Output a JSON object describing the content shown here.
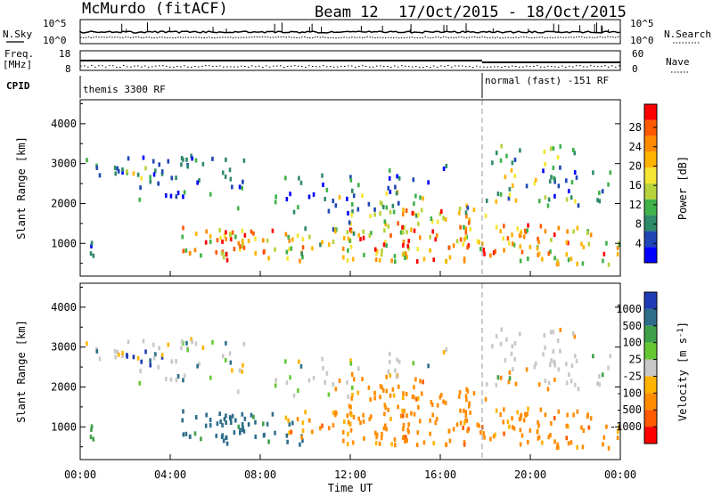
{
  "header": {
    "station": "McMurdo (fitACF)",
    "beam": "Beam 12",
    "dates": "17/Oct/2015 - 18/Oct/2015"
  },
  "noise_panel": {
    "left_label": "N.Sky",
    "right_label": "N.Search",
    "left_ticks": [
      "10^5",
      "10^0"
    ],
    "right_ticks": [
      "10^5",
      "10^0"
    ]
  },
  "freq_panel": {
    "left_label_line1": "Freq.",
    "left_label_line2": "[MHz]",
    "right_label": "Nave",
    "left_ticks": [
      "18",
      "8"
    ],
    "right_ticks": [
      "60",
      "0"
    ]
  },
  "cpid_panel": {
    "label": "CPID",
    "modes": [
      "themis 3300 RF",
      "normal (fast) -151 RF"
    ]
  },
  "chart_data": [
    {
      "type": "heatmap",
      "name": "power",
      "ylabel": "Slant Range [km]",
      "ylim": [
        180,
        4600
      ],
      "yticks": [
        1000,
        2000,
        3000,
        4000
      ],
      "xlim": [
        0,
        24
      ],
      "colorbar_label": "Power [dB]",
      "colorbar_ticks": [
        "4",
        "8",
        "12",
        "16",
        "20",
        "24",
        "28"
      ],
      "colorbar_colors": [
        "#0000ff",
        "#1e46b4",
        "#2f8a6a",
        "#3fb24a",
        "#b8d23c",
        "#f4e632",
        "#ffb400",
        "#ff8c00",
        "#ff5a00",
        "#ff0000"
      ]
    },
    {
      "type": "heatmap",
      "name": "velocity",
      "ylabel": "Slant Range [km]",
      "ylim": [
        180,
        4600
      ],
      "yticks": [
        1000,
        2000,
        3000,
        4000
      ],
      "xlim": [
        0,
        24
      ],
      "colorbar_label": "Velocity [m s",
      "colorbar_label_sup": "-1",
      "colorbar_label_end": "]",
      "colorbar_ticks": [
        "1000",
        "500",
        "100",
        "25",
        "-25",
        "-100",
        "-500",
        "-1000"
      ],
      "colorbar_colors": [
        "#1e3cb4",
        "#2f6e8a",
        "#3fa04a",
        "#64c832",
        "#c8c8c8",
        "#ffb400",
        "#ff8c00",
        "#ff5a00",
        "#ff0000"
      ]
    }
  ],
  "xaxis": {
    "ticks": [
      "00:00",
      "04:00",
      "08:00",
      "12:00",
      "16:00",
      "20:00",
      "00:00"
    ],
    "label": "Time UT"
  }
}
